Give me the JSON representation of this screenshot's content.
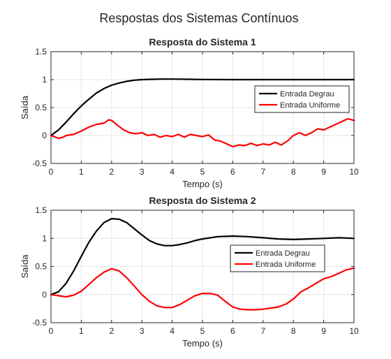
{
  "suptitle": "Respostas dos Sistemas Contínuos",
  "chart_data": [
    {
      "type": "line",
      "title": "Resposta do Sistema 1",
      "xlabel": "Tempo (s)",
      "ylabel": "Saída",
      "xlim": [
        0,
        10
      ],
      "ylim": [
        -0.5,
        1.5
      ],
      "xticks": [
        "0",
        "1",
        "2",
        "3",
        "4",
        "5",
        "6",
        "7",
        "8",
        "9",
        "10"
      ],
      "yticks": [
        "-0.5",
        "0",
        "0.5",
        "1",
        "1.5"
      ],
      "grid": true,
      "legend_position": "right",
      "series": [
        {
          "name": "Entrada Degrau",
          "color": "#000000",
          "x": [
            0,
            0.25,
            0.5,
            0.75,
            1,
            1.25,
            1.5,
            1.75,
            2,
            2.25,
            2.5,
            2.75,
            3,
            3.25,
            3.5,
            3.75,
            4,
            4.5,
            5,
            6,
            7,
            8,
            9,
            10
          ],
          "y": [
            0,
            0.1,
            0.24,
            0.39,
            0.53,
            0.65,
            0.76,
            0.84,
            0.9,
            0.94,
            0.97,
            0.99,
            1.0,
            1.005,
            1.008,
            1.01,
            1.01,
            1.006,
            1.002,
            1.0,
            1.0,
            1.0,
            1.0,
            1.0
          ]
        },
        {
          "name": "Entrada Uniforme",
          "color": "#ff0000",
          "x": [
            0,
            0.25,
            0.4,
            0.5,
            0.75,
            1,
            1.25,
            1.4,
            1.5,
            1.75,
            1.9,
            2,
            2.2,
            2.4,
            2.6,
            2.8,
            3,
            3.2,
            3.4,
            3.6,
            3.8,
            4,
            4.2,
            4.4,
            4.6,
            4.8,
            5,
            5.2,
            5.4,
            5.6,
            5.8,
            6,
            6.2,
            6.4,
            6.6,
            6.8,
            7,
            7.2,
            7.4,
            7.6,
            7.8,
            8,
            8.2,
            8.4,
            8.6,
            8.8,
            9,
            9.2,
            9.4,
            9.6,
            9.8,
            10
          ],
          "y": [
            0,
            -0.05,
            -0.03,
            0.0,
            0.02,
            0.08,
            0.15,
            0.18,
            0.2,
            0.22,
            0.28,
            0.27,
            0.18,
            0.1,
            0.05,
            0.03,
            0.05,
            0.0,
            0.02,
            -0.03,
            0.0,
            -0.02,
            0.02,
            -0.03,
            0.02,
            0.0,
            -0.02,
            0.01,
            -0.08,
            -0.1,
            -0.15,
            -0.2,
            -0.17,
            -0.18,
            -0.14,
            -0.18,
            -0.15,
            -0.17,
            -0.12,
            -0.17,
            -0.1,
            0.0,
            0.05,
            0.0,
            0.05,
            0.12,
            0.1,
            0.15,
            0.2,
            0.25,
            0.3,
            0.27
          ]
        }
      ]
    },
    {
      "type": "line",
      "title": "Resposta do Sistema 2",
      "xlabel": "Tempo (s)",
      "ylabel": "Saída",
      "xlim": [
        0,
        10
      ],
      "ylim": [
        -0.5,
        1.5
      ],
      "xticks": [
        "0",
        "1",
        "2",
        "3",
        "4",
        "5",
        "6",
        "7",
        "8",
        "9",
        "10"
      ],
      "yticks": [
        "-0.5",
        "0",
        "0.5",
        "1",
        "1.5"
      ],
      "grid": true,
      "legend_position": "right",
      "series": [
        {
          "name": "Entrada Degrau",
          "color": "#000000",
          "x": [
            0,
            0.25,
            0.5,
            0.75,
            1,
            1.25,
            1.5,
            1.75,
            2,
            2.25,
            2.5,
            2.75,
            3,
            3.25,
            3.5,
            3.75,
            4,
            4.25,
            4.5,
            4.75,
            5,
            5.5,
            6,
            6.5,
            7,
            7.5,
            8,
            8.5,
            9,
            9.5,
            10
          ],
          "y": [
            0,
            0.05,
            0.2,
            0.42,
            0.68,
            0.93,
            1.13,
            1.28,
            1.35,
            1.34,
            1.28,
            1.17,
            1.06,
            0.96,
            0.9,
            0.87,
            0.87,
            0.89,
            0.92,
            0.96,
            0.99,
            1.03,
            1.04,
            1.03,
            1.01,
            0.99,
            0.98,
            0.99,
            1.0,
            1.01,
            1.0
          ]
        },
        {
          "name": "Entrada Uniforme",
          "color": "#ff0000",
          "x": [
            0,
            0.25,
            0.5,
            0.75,
            1,
            1.25,
            1.5,
            1.75,
            2,
            2.25,
            2.5,
            2.75,
            3,
            3.25,
            3.5,
            3.75,
            4,
            4.25,
            4.5,
            4.75,
            5,
            5.25,
            5.5,
            5.75,
            6,
            6.25,
            6.5,
            6.75,
            7,
            7.25,
            7.5,
            7.75,
            8,
            8.25,
            8.5,
            8.75,
            9,
            9.25,
            9.5,
            9.75,
            10
          ],
          "y": [
            0,
            -0.02,
            -0.04,
            -0.01,
            0.06,
            0.18,
            0.3,
            0.4,
            0.46,
            0.42,
            0.3,
            0.15,
            0.0,
            -0.12,
            -0.2,
            -0.23,
            -0.23,
            -0.18,
            -0.1,
            -0.02,
            0.02,
            0.02,
            -0.01,
            -0.12,
            -0.22,
            -0.26,
            -0.27,
            -0.27,
            -0.26,
            -0.24,
            -0.22,
            -0.17,
            -0.08,
            0.05,
            0.12,
            0.2,
            0.28,
            0.32,
            0.38,
            0.44,
            0.47
          ]
        }
      ]
    }
  ]
}
